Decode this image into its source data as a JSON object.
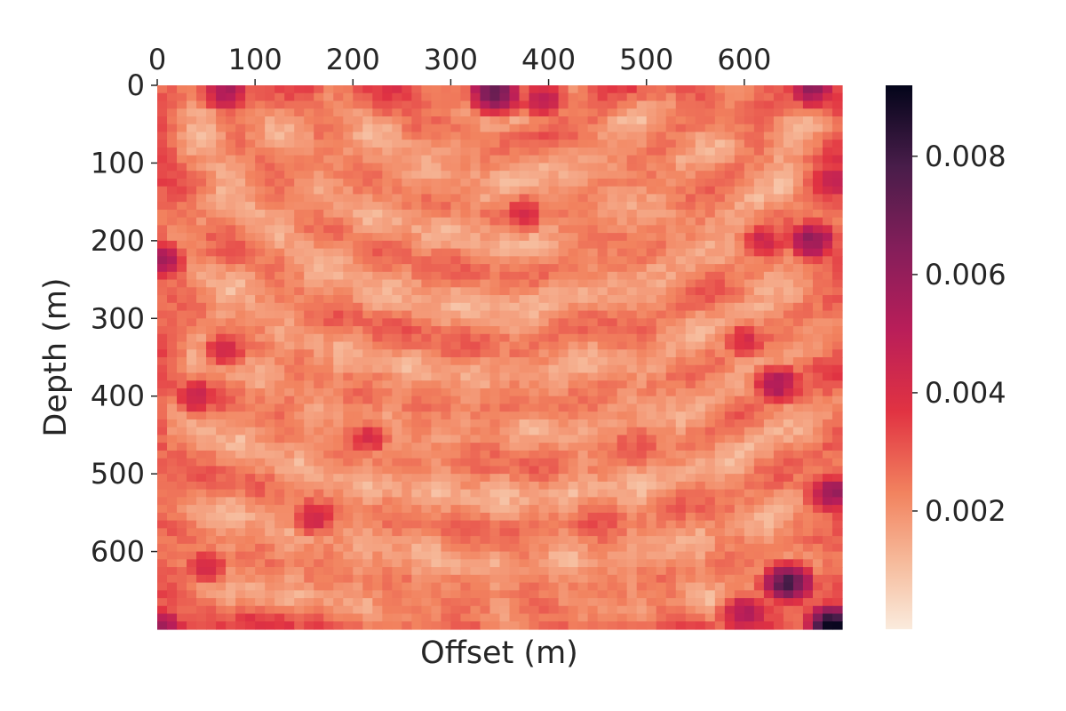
{
  "chart_data": {
    "type": "heatmap",
    "title": "",
    "xlabel": "Offset (m)",
    "ylabel": "Depth (m)",
    "x_axis_position": "top",
    "xlim": [
      0,
      700
    ],
    "ylim": [
      700,
      0
    ],
    "x_ticks": [
      0,
      100,
      200,
      300,
      400,
      500,
      600
    ],
    "y_ticks": [
      0,
      100,
      200,
      300,
      400,
      500,
      600
    ],
    "grid_cells": [
      70,
      70
    ],
    "colormap": "rocket_r",
    "colorbar": {
      "range": [
        0,
        0.0092
      ],
      "ticks": [
        "0.002",
        "0.004",
        "0.006",
        "0.008"
      ],
      "tick_values": [
        0.002,
        0.004,
        0.006,
        0.008
      ]
    },
    "hotspots": [
      {
        "x": 345,
        "y": 10,
        "value": 0.0075
      },
      {
        "x": 70,
        "y": 8,
        "value": 0.0055
      },
      {
        "x": 670,
        "y": 5,
        "value": 0.006
      },
      {
        "x": 395,
        "y": 20,
        "value": 0.005
      },
      {
        "x": 375,
        "y": 165,
        "value": 0.0042
      },
      {
        "x": 670,
        "y": 200,
        "value": 0.0062
      },
      {
        "x": 5,
        "y": 225,
        "value": 0.0055
      },
      {
        "x": 690,
        "y": 125,
        "value": 0.005
      },
      {
        "x": 620,
        "y": 200,
        "value": 0.0045
      },
      {
        "x": 40,
        "y": 400,
        "value": 0.0048
      },
      {
        "x": 70,
        "y": 340,
        "value": 0.0042
      },
      {
        "x": 635,
        "y": 385,
        "value": 0.0055
      },
      {
        "x": 690,
        "y": 525,
        "value": 0.006
      },
      {
        "x": 645,
        "y": 640,
        "value": 0.0078
      },
      {
        "x": 600,
        "y": 680,
        "value": 0.0055
      },
      {
        "x": 690,
        "y": 695,
        "value": 0.0092
      },
      {
        "x": 160,
        "y": 555,
        "value": 0.0045
      },
      {
        "x": 50,
        "y": 620,
        "value": 0.0042
      },
      {
        "x": 5,
        "y": 695,
        "value": 0.0055
      },
      {
        "x": 215,
        "y": 455,
        "value": 0.004
      },
      {
        "x": 600,
        "y": 330,
        "value": 0.0042
      }
    ]
  }
}
